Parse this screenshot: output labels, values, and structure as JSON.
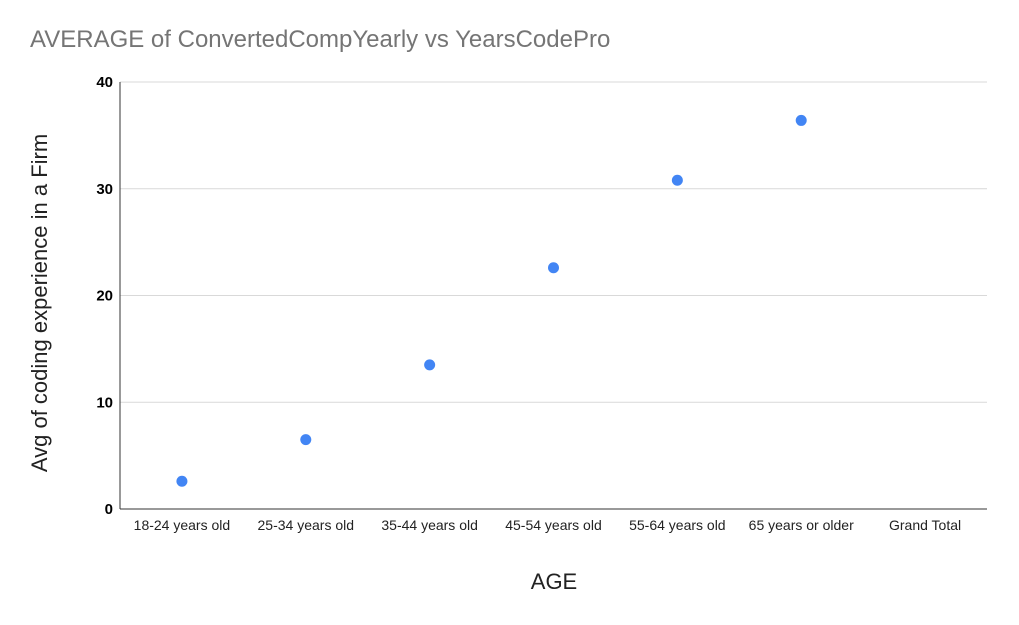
{
  "chart_data": {
    "type": "scatter",
    "title": "AVERAGE of ConvertedCompYearly vs YearsCodePro",
    "xlabel": "AGE",
    "ylabel": "Avg  of coding experience in a Firm",
    "categories": [
      "18-24 years old",
      "25-34 years old",
      "35-44 years old",
      "45-54 years old",
      "55-64 years old",
      "65 years or older",
      "Grand Total"
    ],
    "y_ticks": [
      "0",
      "10",
      "20",
      "30",
      "40"
    ],
    "ylim": [
      0,
      40
    ],
    "grid": true,
    "legend": "none",
    "point_color": "#4285f4",
    "series": [
      {
        "values": [
          2.6,
          6.5,
          13.5,
          22.6,
          30.8,
          36.4,
          null
        ]
      }
    ]
  }
}
